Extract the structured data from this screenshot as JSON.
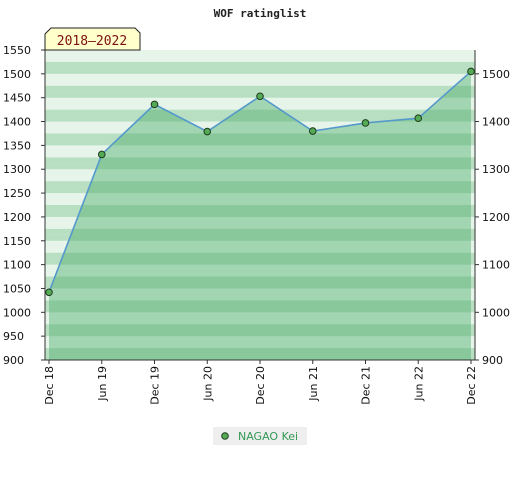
{
  "chart_data": {
    "type": "area",
    "title": "WOF ratinglist",
    "period_badge": "2018–2022",
    "x": [
      "Dec 18",
      "Jun 19",
      "Dec 19",
      "Jun 20",
      "Dec 20",
      "Jun 21",
      "Dec 21",
      "Jun 22",
      "Dec 22"
    ],
    "series": [
      {
        "name": "NAGAO Kei",
        "values": [
          1042,
          1331,
          1436,
          1379,
          1453,
          1380,
          1397,
          1407,
          1505
        ]
      }
    ],
    "ylim_left": [
      900,
      1550
    ],
    "yticks_left": [
      900,
      950,
      1000,
      1050,
      1100,
      1150,
      1200,
      1250,
      1300,
      1350,
      1400,
      1450,
      1500,
      1550
    ],
    "ylim_right": [
      900,
      1550
    ],
    "yticks_right": [
      900,
      1000,
      1100,
      1200,
      1300,
      1400,
      1500
    ],
    "grid": true,
    "legend_position": "bottom-center",
    "colors": {
      "line": "#5599cc",
      "area": "#44aa66",
      "marker": "#55aa55",
      "band_dark": "#b5ddc0",
      "band_light": "#e6f3e9",
      "badge_fill": "#ffffcc"
    }
  }
}
